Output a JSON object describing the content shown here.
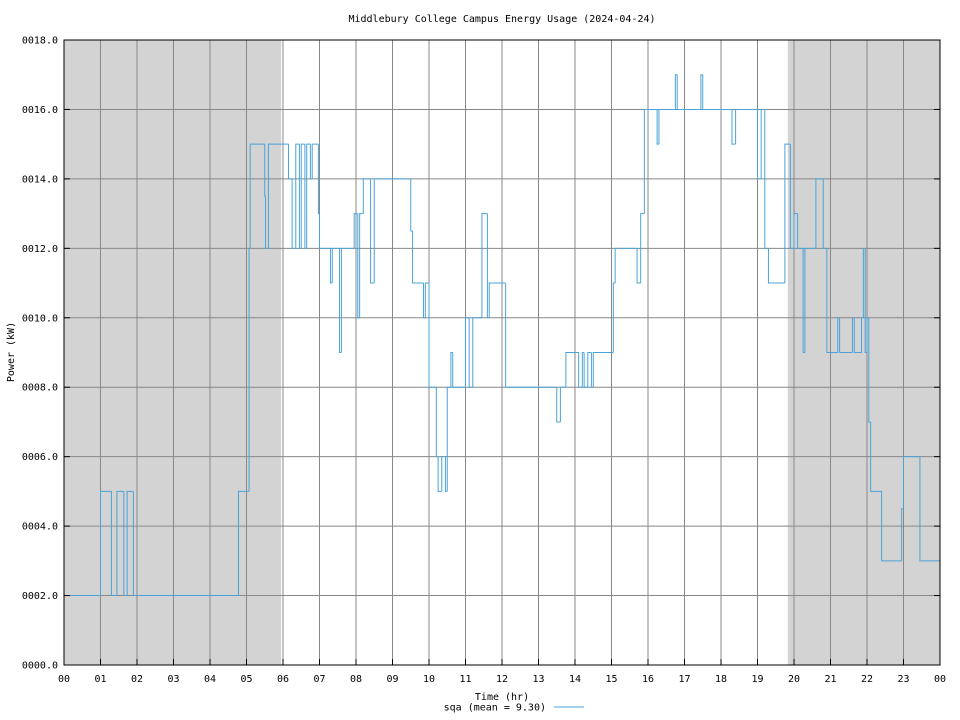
{
  "chart_data": {
    "type": "step",
    "title": "Middlebury College Campus Energy Usage (2024-04-24)",
    "x_label": "Time (hr)",
    "y_label": "Power (kW)",
    "xlim": [
      0,
      24
    ],
    "ylim": [
      0,
      18
    ],
    "xticks": [
      {
        "value": 0,
        "label": "00"
      },
      {
        "value": 1,
        "label": "01"
      },
      {
        "value": 2,
        "label": "02"
      },
      {
        "value": 3,
        "label": "03"
      },
      {
        "value": 4,
        "label": "04"
      },
      {
        "value": 5,
        "label": "05"
      },
      {
        "value": 6,
        "label": "06"
      },
      {
        "value": 7,
        "label": "07"
      },
      {
        "value": 8,
        "label": "08"
      },
      {
        "value": 9,
        "label": "09"
      },
      {
        "value": 10,
        "label": "10"
      },
      {
        "value": 11,
        "label": "11"
      },
      {
        "value": 12,
        "label": "12"
      },
      {
        "value": 13,
        "label": "13"
      },
      {
        "value": 14,
        "label": "14"
      },
      {
        "value": 15,
        "label": "15"
      },
      {
        "value": 16,
        "label": "16"
      },
      {
        "value": 17,
        "label": "17"
      },
      {
        "value": 18,
        "label": "18"
      },
      {
        "value": 19,
        "label": "19"
      },
      {
        "value": 20,
        "label": "20"
      },
      {
        "value": 21,
        "label": "21"
      },
      {
        "value": 22,
        "label": "22"
      },
      {
        "value": 23,
        "label": "23"
      },
      {
        "value": 24,
        "label": "00"
      }
    ],
    "yticks": [
      {
        "value": 0,
        "label": "0000.0"
      },
      {
        "value": 2,
        "label": "0002.0"
      },
      {
        "value": 4,
        "label": "0004.0"
      },
      {
        "value": 6,
        "label": "0006.0"
      },
      {
        "value": 8,
        "label": "0008.0"
      },
      {
        "value": 10,
        "label": "0010.0"
      },
      {
        "value": 12,
        "label": "0012.0"
      },
      {
        "value": 14,
        "label": "0014.0"
      },
      {
        "value": 16,
        "label": "0016.0"
      },
      {
        "value": 18,
        "label": "0018.0"
      }
    ],
    "grid": true,
    "shaded_regions": [
      [
        0,
        5.95
      ],
      [
        19.83,
        24
      ]
    ],
    "shade_color": "#d3d3d3",
    "series": [
      {
        "name": "sqa (mean = 9.30)",
        "color": "#4aa3d8",
        "x": [
          0,
          1.0,
          1.3,
          1.45,
          1.64,
          1.73,
          1.9,
          4.78,
          5.07,
          5.1,
          5.5,
          5.52,
          5.6,
          6.15,
          6.25,
          6.35,
          6.45,
          6.5,
          6.6,
          6.65,
          6.75,
          6.8,
          6.97,
          7.0,
          7.3,
          7.35,
          7.55,
          7.6,
          7.95,
          8.05,
          8.1,
          8.2,
          8.4,
          8.5,
          9.5,
          9.55,
          9.85,
          9.9,
          10.0,
          10.2,
          10.25,
          10.35,
          10.45,
          10.5,
          10.6,
          10.65,
          11.0,
          11.1,
          11.2,
          11.45,
          11.6,
          11.65,
          12.1,
          13.5,
          13.6,
          13.75,
          14.1,
          14.2,
          14.25,
          14.35,
          14.45,
          14.5,
          15.05,
          15.1,
          15.7,
          15.8,
          15.9,
          16.25,
          16.3,
          16.75,
          16.8,
          17.45,
          17.5,
          18.3,
          18.4,
          19.0,
          19.1,
          19.2,
          19.3,
          19.75,
          19.9,
          20.0,
          20.1,
          20.25,
          20.3,
          20.6,
          20.8,
          20.9,
          21.2,
          21.25,
          21.6,
          21.65,
          21.85,
          21.9,
          21.95,
          22.0,
          22.05,
          22.1,
          22.4,
          22.95,
          23.0,
          23.45
        ],
        "values": [
          2,
          5,
          2,
          5,
          2,
          5,
          2,
          5,
          12,
          15,
          13.5,
          12,
          15,
          14,
          12,
          15,
          12,
          15,
          12,
          15,
          14,
          15,
          13,
          12,
          11,
          12,
          9,
          12,
          13,
          10,
          13,
          14,
          11,
          14,
          12.5,
          11,
          10,
          11,
          8,
          6,
          5,
          6,
          5,
          8,
          9,
          8,
          10,
          8,
          10,
          13,
          10,
          11,
          8,
          7,
          8,
          9,
          8,
          9,
          8,
          9,
          8,
          9,
          11,
          12,
          11,
          13,
          16,
          15,
          16,
          17,
          16,
          17,
          16,
          15,
          16,
          14,
          16,
          12,
          11,
          15,
          12,
          13,
          12,
          9,
          12,
          14,
          12,
          9,
          10,
          9,
          10,
          9,
          10,
          12,
          9,
          10,
          7,
          5,
          3,
          4.5,
          6,
          3
        ]
      }
    ]
  }
}
